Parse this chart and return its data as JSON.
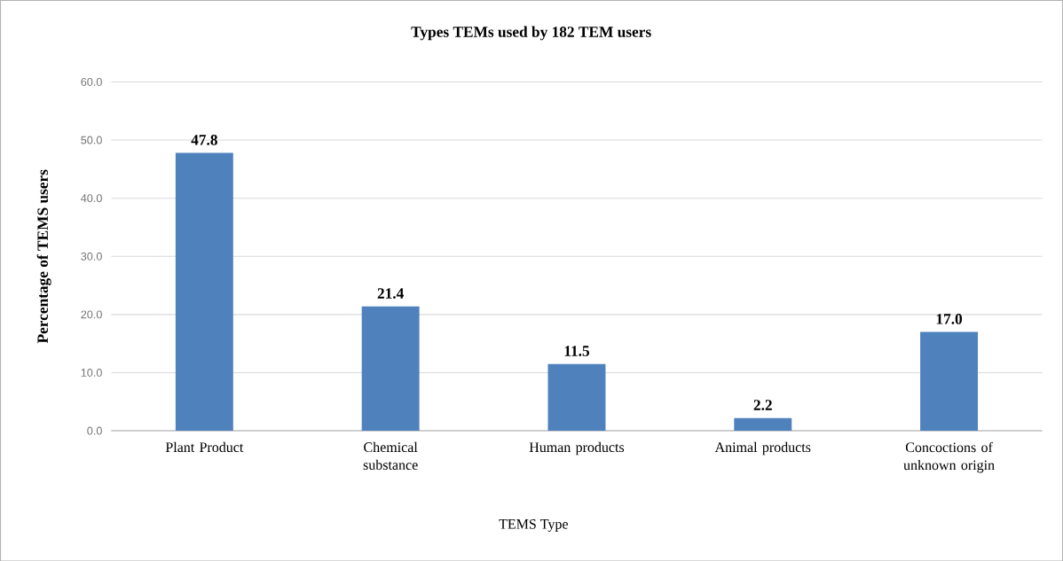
{
  "chart_data": {
    "type": "bar",
    "title": "Types TEMs used by 182 TEM users",
    "xlabel": "TEMS Type",
    "ylabel": "Percentage of TEMS users",
    "categories": [
      "Plant Product",
      "Chemical substance",
      "Human products",
      "Animal products",
      "Concoctions of unknown origin"
    ],
    "values": [
      47.8,
      21.4,
      11.5,
      2.2,
      17.0
    ],
    "value_labels": [
      "47.8",
      "21.4",
      "11.5",
      "2.2",
      "17.0"
    ],
    "color": "#4f81bd",
    "ylim": [
      0,
      60
    ],
    "yticks": [
      {
        "value": 0,
        "label": "0.0"
      },
      {
        "value": 10,
        "label": "10.0"
      },
      {
        "value": 20,
        "label": "20.0"
      },
      {
        "value": 30,
        "label": "30.0"
      },
      {
        "value": 40,
        "label": "40.0"
      },
      {
        "value": 50,
        "label": "50.0"
      },
      {
        "value": 60,
        "label": "60.0"
      }
    ],
    "grid": "y"
  }
}
